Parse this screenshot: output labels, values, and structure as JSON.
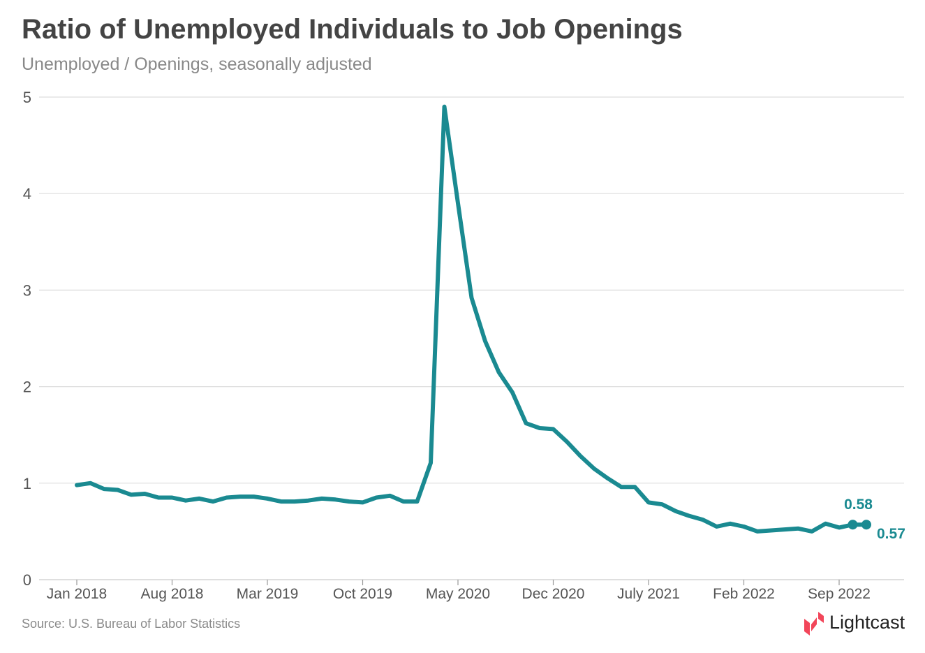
{
  "header": {
    "title": "Ratio of Unemployed Individuals to Job Openings",
    "subtitle": "Unemployed / Openings, seasonally adjusted"
  },
  "footer": {
    "source": "Source:  U.S. Bureau of Labor Statistics",
    "logo_text": "Lightcast"
  },
  "colors": {
    "line": "#1a8a91",
    "grid": "#dddddd",
    "axis_text": "#555555",
    "logo_accent": "#f2465a"
  },
  "chart_data": {
    "type": "line",
    "x_start": "2018-01",
    "x_tick_labels": [
      "Jan 2018",
      "Aug 2018",
      "Mar 2019",
      "Oct 2019",
      "May 2020",
      "Dec 2020",
      "July 2021",
      "Feb 2022",
      "Sep 2022"
    ],
    "y_tick_labels": [
      "0",
      "1",
      "2",
      "3",
      "4",
      "5"
    ],
    "ylim": [
      0,
      5
    ],
    "grid": "horizontal",
    "series": [
      {
        "values": [
          0.98,
          1.0,
          0.94,
          0.93,
          0.88,
          0.89,
          0.85,
          0.85,
          0.82,
          0.84,
          0.81,
          0.85,
          0.86,
          0.86,
          0.84,
          0.81,
          0.81,
          0.82,
          0.84,
          0.83,
          0.81,
          0.8,
          0.85,
          0.87,
          0.81,
          0.81,
          1.21,
          4.9,
          3.9,
          2.92,
          2.47,
          2.15,
          1.94,
          1.62,
          1.57,
          1.56,
          1.43,
          1.28,
          1.15,
          1.05,
          0.96,
          0.96,
          0.8,
          0.78,
          0.71,
          0.66,
          0.62,
          0.55,
          0.58,
          0.55,
          0.5,
          0.51,
          0.52,
          0.53,
          0.5,
          0.58,
          0.54,
          0.57,
          0.57
        ]
      }
    ],
    "annotations": [
      {
        "label": "0.58",
        "value": 0.58
      },
      {
        "label": "0.57",
        "value": 0.57
      }
    ]
  }
}
